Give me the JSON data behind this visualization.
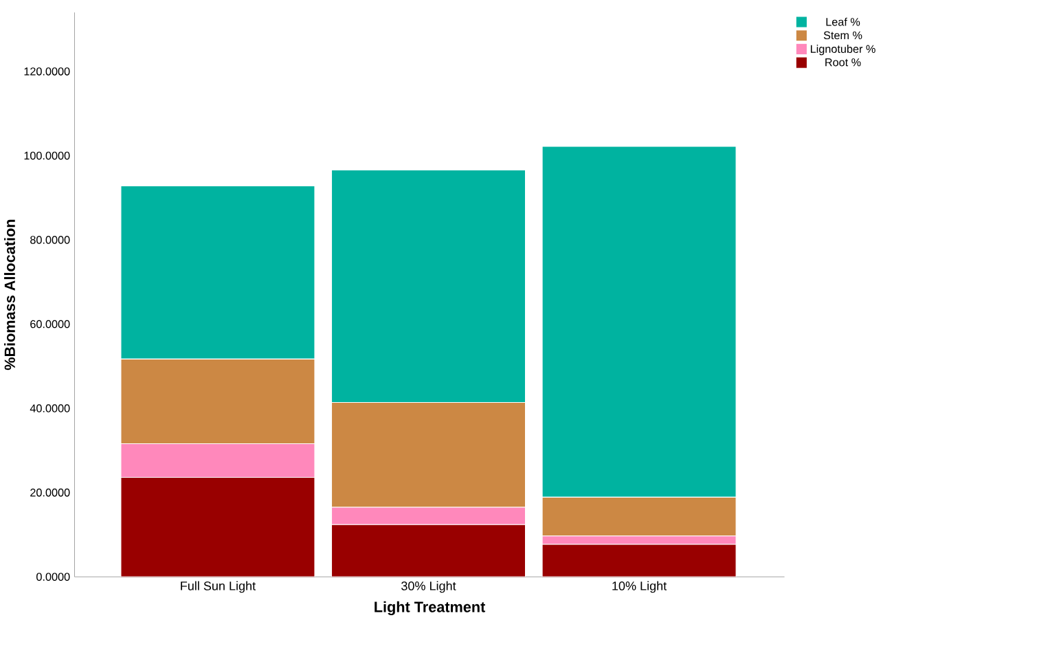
{
  "chart_data": {
    "type": "bar",
    "stacked": true,
    "xlabel": "Light Treatment",
    "ylabel": "%Biomass Allocation",
    "categories": [
      "Full Sun Light",
      "30% Light",
      "10% Light"
    ],
    "series": [
      {
        "name": "Root %",
        "color": "#990000",
        "values": [
          23.6,
          12.4,
          7.7
        ]
      },
      {
        "name": "Lignotuber %",
        "color": "#ff88bb",
        "values": [
          8.0,
          4.1,
          2.0
        ]
      },
      {
        "name": "Stem %",
        "color": "#cc8844",
        "values": [
          20.1,
          24.9,
          9.2
        ]
      },
      {
        "name": "Leaf %",
        "color": "#00b3a0",
        "values": [
          41.1,
          55.2,
          83.3
        ]
      }
    ],
    "ylim": [
      0,
      134
    ],
    "yticks": [
      {
        "value": 0,
        "label": "0.0000"
      },
      {
        "value": 20,
        "label": "20.0000"
      },
      {
        "value": 40,
        "label": "40.0000"
      },
      {
        "value": 60,
        "label": "60.0000"
      },
      {
        "value": 80,
        "label": "80.0000"
      },
      {
        "value": 100,
        "label": "100.0000"
      },
      {
        "value": 120,
        "label": "120.0000"
      }
    ],
    "legend": "top right",
    "grid": false
  }
}
